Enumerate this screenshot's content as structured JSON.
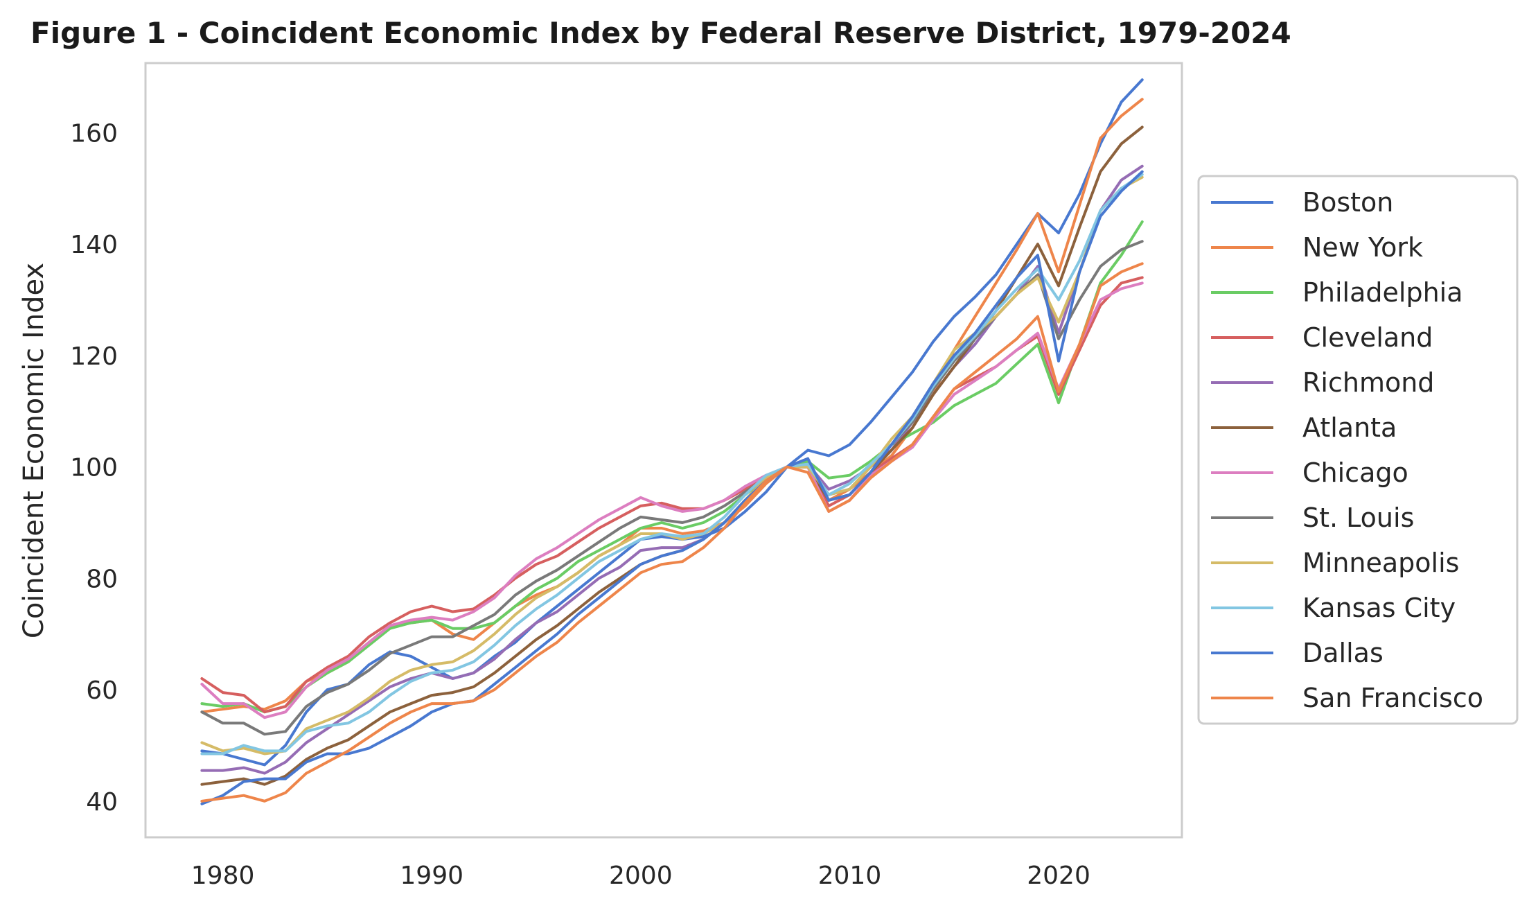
{
  "chart_data": {
    "type": "line",
    "title": "Figure 1 - Coincident Economic Index by Federal Reserve District, 1979-2024",
    "xlabel": "",
    "ylabel": "Coincident Economic Index",
    "xlim": [
      1976.3,
      2025.9
    ],
    "ylim": [
      33.5,
      172.5
    ],
    "x_ticks": [
      1980,
      1990,
      2000,
      2010,
      2020
    ],
    "y_ticks": [
      40,
      60,
      80,
      100,
      120,
      140,
      160
    ],
    "grid": false,
    "legend": "outside-right",
    "x": [
      1979,
      1980,
      1981,
      1982,
      1983,
      1984,
      1985,
      1986,
      1987,
      1988,
      1989,
      1990,
      1991,
      1992,
      1993,
      1994,
      1995,
      1996,
      1997,
      1998,
      1999,
      2000,
      2001,
      2002,
      2003,
      2004,
      2005,
      2006,
      2007,
      2008,
      2009,
      2010,
      2011,
      2012,
      2013,
      2014,
      2015,
      2016,
      2017,
      2018,
      2019,
      2020,
      2021,
      2022,
      2023,
      2024
    ],
    "series": [
      {
        "name": "Boston",
        "color": "#4878d0",
        "values": [
          49,
          48.5,
          47.5,
          46.5,
          50,
          56,
          60,
          61,
          64.5,
          66.8,
          66,
          64,
          62,
          63,
          66,
          68.5,
          72,
          75,
          78,
          81,
          84,
          87,
          87.5,
          87,
          87.5,
          89,
          92,
          95.5,
          100,
          103,
          102,
          104,
          108,
          112.5,
          117,
          122.5,
          127,
          130.5,
          134.5,
          140,
          145.5,
          142,
          149,
          158,
          165.5,
          169.5
        ]
      },
      {
        "name": "New York",
        "color": "#ee854a",
        "values": [
          56,
          56.5,
          57,
          56.5,
          58,
          61.5,
          63,
          65,
          68.5,
          71.5,
          72,
          72.5,
          70,
          69,
          72,
          75,
          77,
          78.5,
          81,
          84,
          86,
          89,
          89,
          88,
          88.5,
          90,
          93,
          97,
          100,
          100,
          94,
          96,
          99,
          102,
          107,
          113,
          121,
          127,
          133,
          139,
          145.5,
          135,
          147,
          159,
          163,
          166
        ]
      },
      {
        "name": "Philadelphia",
        "color": "#6acc64",
        "values": [
          57.5,
          57,
          57.5,
          56,
          57,
          60.5,
          63,
          65,
          68,
          71,
          72,
          72.5,
          71,
          71,
          72,
          75,
          78,
          80,
          83,
          85,
          87,
          89,
          90,
          89,
          90,
          92,
          95,
          98,
          100,
          101,
          98,
          98.5,
          101,
          104,
          106,
          108,
          111,
          113,
          115,
          118.5,
          122,
          111.5,
          122,
          133,
          138,
          144
        ]
      },
      {
        "name": "Cleveland",
        "color": "#d65f5f",
        "values": [
          62,
          59.5,
          59,
          56,
          57,
          61.5,
          64,
          66,
          69.5,
          72,
          74,
          75,
          74,
          74.5,
          77,
          80,
          82.5,
          84,
          86.5,
          89,
          91,
          93,
          93.5,
          92.5,
          92.5,
          94,
          96,
          98,
          100,
          100,
          93,
          95,
          99,
          101.5,
          104,
          109,
          114,
          116,
          118,
          121,
          123.5,
          113,
          121,
          129,
          133,
          134
        ]
      },
      {
        "name": "Richmond",
        "color": "#956cb4",
        "values": [
          45.5,
          45.5,
          46,
          45,
          47,
          50.5,
          53,
          55.5,
          58,
          60.5,
          62,
          63,
          62,
          63,
          65.5,
          69,
          72,
          74,
          77,
          80,
          82,
          85,
          85.5,
          85.5,
          87,
          90,
          94,
          97.5,
          100,
          100.5,
          96,
          97.5,
          100,
          103,
          108,
          113,
          118,
          122,
          127,
          131,
          136,
          124,
          135,
          146,
          151.5,
          154
        ]
      },
      {
        "name": "Atlanta",
        "color": "#8c613c",
        "values": [
          43,
          43.5,
          44,
          43,
          44.5,
          47.5,
          49.5,
          51,
          53.5,
          56,
          57.5,
          59,
          59.5,
          60.5,
          63,
          66,
          69,
          71.5,
          74.5,
          77.5,
          80,
          82.5,
          84,
          85,
          87,
          90,
          94,
          98,
          100,
          100,
          94,
          95,
          99,
          103,
          107,
          113,
          118,
          123,
          128,
          134,
          140,
          132.5,
          143,
          153,
          158,
          161
        ]
      },
      {
        "name": "Chicago",
        "color": "#dc7ec0",
        "values": [
          61,
          57.5,
          57.5,
          55,
          56,
          60.5,
          63.5,
          65.5,
          68.5,
          71.5,
          72.5,
          73,
          72.5,
          74,
          76.5,
          80.5,
          83.5,
          85.5,
          88,
          90.5,
          92.5,
          94.5,
          93,
          92,
          92.5,
          94,
          96.5,
          98.5,
          100,
          100,
          92,
          94,
          98.5,
          101,
          103.5,
          108.5,
          113,
          115.5,
          118,
          121,
          124,
          114,
          122,
          130,
          132,
          133
        ]
      },
      {
        "name": "St. Louis",
        "color": "#797979",
        "values": [
          56,
          54,
          54,
          52,
          52.5,
          57,
          59.5,
          61,
          63.5,
          66.5,
          68,
          69.5,
          69.5,
          71.5,
          73.5,
          77,
          79.5,
          81.5,
          84,
          86.5,
          89,
          91,
          90.5,
          90,
          91,
          93,
          95.5,
          98,
          100,
          100,
          95,
          96,
          100,
          104,
          108,
          114,
          119,
          123,
          127,
          131,
          134.5,
          123,
          130,
          136,
          139,
          140.5
        ]
      },
      {
        "name": "Minneapolis",
        "color": "#d5bb67",
        "values": [
          50.5,
          49,
          49.5,
          48.5,
          49,
          53,
          54.5,
          56,
          58.5,
          61.5,
          63.5,
          64.5,
          65,
          67,
          70,
          73.5,
          76.5,
          78.5,
          81,
          84,
          86,
          88,
          88,
          87,
          88,
          90,
          94,
          98,
          100,
          100,
          95,
          96,
          100,
          105,
          109,
          115,
          121,
          124,
          127,
          131,
          134,
          126,
          135,
          146,
          150,
          152
        ]
      },
      {
        "name": "Kansas City",
        "color": "#82c6e2",
        "values": [
          48.5,
          48.5,
          50,
          49,
          49,
          52.5,
          53.5,
          54,
          56,
          59,
          61.5,
          63,
          63.5,
          65,
          68,
          71.5,
          74.5,
          77,
          80,
          83,
          85,
          87,
          88,
          87.5,
          88,
          91,
          95,
          98.5,
          100,
          100.5,
          95,
          97,
          100.5,
          104,
          108.5,
          114.5,
          119.5,
          123.5,
          128,
          132,
          135.5,
          130,
          137,
          146,
          150,
          152.5
        ]
      },
      {
        "name": "Dallas",
        "color": "#4878d0",
        "values": [
          39.5,
          41,
          43.5,
          44,
          44,
          47,
          48.5,
          48.5,
          49.5,
          51.5,
          53.5,
          56,
          57.5,
          58,
          61,
          64,
          67,
          70,
          73.5,
          76.5,
          79.5,
          82.5,
          84,
          85,
          87,
          90,
          94,
          97.5,
          100,
          101.5,
          94,
          95,
          99,
          104,
          109,
          115,
          120,
          124,
          129,
          134,
          138,
          119,
          135,
          145,
          149.5,
          153
        ]
      },
      {
        "name": "San Francisco",
        "color": "#ee854a",
        "values": [
          40,
          40.5,
          41,
          40,
          41.5,
          45,
          47,
          49,
          51.5,
          54,
          56,
          57.5,
          57.5,
          58,
          60,
          63,
          66,
          68.5,
          72,
          75,
          78,
          81,
          82.5,
          83,
          85.5,
          89,
          93.5,
          97.5,
          100,
          99,
          92,
          94,
          98,
          101,
          104,
          109,
          114,
          117,
          120,
          123,
          127,
          113.5,
          122,
          132.5,
          135,
          136.5
        ]
      }
    ]
  }
}
